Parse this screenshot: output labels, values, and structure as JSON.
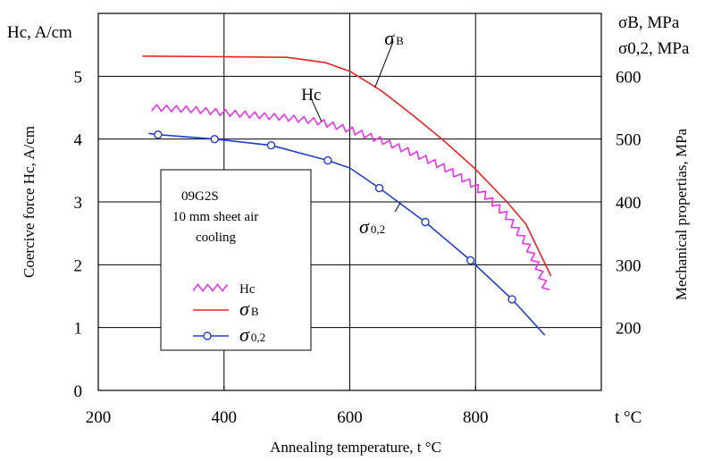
{
  "chart_data": {
    "type": "line",
    "xlabel": "Annealing temperature, t °C",
    "x_unit_label": "t °C",
    "ylabel_left": "Coercive force Hc, A/cm",
    "ylabel_left_top": "Hc, A/cm",
    "ylabel_right": "Mechanical propertias, MPa",
    "ylabel_right_top": [
      "σB, MPa",
      "σ0,2, MPa"
    ],
    "xlim": [
      200,
      1000
    ],
    "ylim_left": [
      0,
      6
    ],
    "ylim_right": [
      100,
      700
    ],
    "x_ticks": [
      "200",
      "400",
      "600",
      "800"
    ],
    "y_left_ticks": [
      "0",
      "1",
      "2",
      "3",
      "4",
      "5"
    ],
    "y_right_ticks": [
      "200",
      "300",
      "400",
      "500",
      "600"
    ],
    "grid": true,
    "legend_position": "center-left",
    "legend_note": [
      "09G2S",
      "10 mm sheet air",
      "cooling"
    ],
    "series": [
      {
        "name": "Hc",
        "axis": "left",
        "style": "zigzag",
        "color": "#ee33ee",
        "x": [
          285,
          350,
          400,
          450,
          500,
          550,
          600,
          650,
          700,
          750,
          800,
          850,
          880,
          900,
          915
        ],
        "y": [
          4.5,
          4.47,
          4.42,
          4.38,
          4.34,
          4.28,
          4.15,
          3.98,
          3.78,
          3.55,
          3.25,
          2.78,
          2.35,
          1.95,
          1.53
        ]
      },
      {
        "name": "σB",
        "axis": "right",
        "style": "line",
        "color": "#ee2222",
        "x": [
          270,
          400,
          500,
          560,
          600,
          650,
          700,
          750,
          800,
          850,
          880,
          920
        ],
        "y": [
          632,
          631,
          630,
          622,
          608,
          577,
          538,
          497,
          452,
          400,
          365,
          282
        ]
      },
      {
        "name": "σ0,2",
        "axis": "right",
        "style": "line-markers",
        "color": "#1f3fd0",
        "x": [
          280,
          295,
          385,
          475,
          565,
          600,
          647,
          720,
          792,
          858,
          910
        ],
        "y": [
          509,
          507,
          500,
          490,
          466,
          454,
          422,
          368,
          307,
          245,
          188
        ],
        "markers_x": [
          295,
          385,
          475,
          565,
          647,
          720,
          792,
          858
        ],
        "markers_y": [
          507,
          500,
          490,
          466,
          422,
          368,
          307,
          245
        ]
      }
    ],
    "annotations": [
      {
        "label": "σB",
        "x": 655,
        "y": 650,
        "pointer_to": [
          640,
          582
        ]
      },
      {
        "label": "Hc",
        "x": 523,
        "y": 4.62,
        "pointer_to": [
          555,
          4.28
        ]
      },
      {
        "label": "σ0,2",
        "x": 615,
        "y": 350,
        "pointer_to": [
          680,
          398
        ]
      }
    ]
  }
}
